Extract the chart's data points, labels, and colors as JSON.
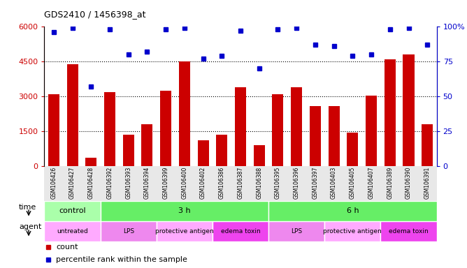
{
  "title": "GDS2410 / 1456398_at",
  "samples": [
    "GSM106426",
    "GSM106427",
    "GSM106428",
    "GSM106392",
    "GSM106393",
    "GSM106394",
    "GSM106399",
    "GSM106400",
    "GSM106402",
    "GSM106386",
    "GSM106387",
    "GSM106388",
    "GSM106395",
    "GSM106396",
    "GSM106397",
    "GSM106403",
    "GSM106405",
    "GSM106407",
    "GSM106389",
    "GSM106390",
    "GSM106391"
  ],
  "counts": [
    3100,
    4400,
    350,
    3200,
    1350,
    1800,
    3250,
    4500,
    1100,
    1350,
    3400,
    900,
    3100,
    3400,
    2600,
    2600,
    1450,
    3050,
    4600,
    4800,
    1800
  ],
  "percentiles": [
    96,
    99,
    57,
    98,
    80,
    82,
    98,
    99,
    77,
    79,
    97,
    70,
    98,
    99,
    87,
    86,
    79,
    80,
    98,
    99,
    87
  ],
  "bar_color": "#cc0000",
  "dot_color": "#0000cc",
  "ylim_left": [
    0,
    6000
  ],
  "ylim_right": [
    0,
    100
  ],
  "yticks_left": [
    0,
    1500,
    3000,
    4500,
    6000
  ],
  "yticks_right": [
    0,
    25,
    50,
    75,
    100
  ],
  "time_groups": [
    {
      "label": "control",
      "start": 0,
      "end": 3,
      "color": "#aaffaa"
    },
    {
      "label": "3 h",
      "start": 3,
      "end": 12,
      "color": "#66ee66"
    },
    {
      "label": "6 h",
      "start": 12,
      "end": 21,
      "color": "#66ee66"
    }
  ],
  "agent_groups": [
    {
      "label": "untreated",
      "start": 0,
      "end": 3,
      "color": "#ffaaff"
    },
    {
      "label": "LPS",
      "start": 3,
      "end": 6,
      "color": "#ee88ee"
    },
    {
      "label": "protective antigen",
      "start": 6,
      "end": 9,
      "color": "#ffaaff"
    },
    {
      "label": "edema toxin",
      "start": 9,
      "end": 12,
      "color": "#ee44ee"
    },
    {
      "label": "LPS",
      "start": 12,
      "end": 15,
      "color": "#ee88ee"
    },
    {
      "label": "protective antigen",
      "start": 15,
      "end": 18,
      "color": "#ffaaff"
    },
    {
      "label": "edema toxin",
      "start": 18,
      "end": 21,
      "color": "#ee44ee"
    }
  ],
  "time_label": "time",
  "agent_label": "agent",
  "legend_count_label": "count",
  "legend_pct_label": "percentile rank within the sample",
  "tick_label_area_color": "#e8e8e8",
  "grid_yticks": [
    1500,
    3000,
    4500
  ]
}
